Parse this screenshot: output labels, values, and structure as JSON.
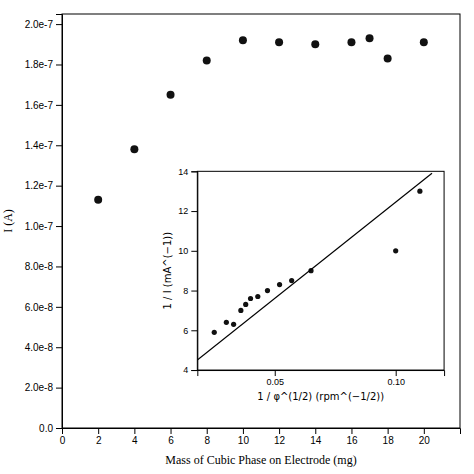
{
  "chart_data": [
    {
      "type": "scatter",
      "x": [
        2,
        4,
        6,
        8,
        10,
        12,
        14,
        16,
        17,
        18,
        20
      ],
      "values": [
        1.13e-07,
        1.38e-07,
        1.65e-07,
        1.82e-07,
        1.92e-07,
        1.91e-07,
        1.9e-07,
        1.91e-07,
        1.93e-07,
        1.83e-07,
        1.91e-07
      ],
      "color": "#111111",
      "xlim": [
        0,
        22
      ],
      "ylim": [
        0.0,
        2.05e-07
      ],
      "xticks": [
        0,
        2,
        4,
        6,
        8,
        10,
        12,
        14,
        16,
        18,
        20
      ],
      "yticks": [
        {
          "value": 0.0,
          "label": "0.0"
        },
        {
          "value": 2e-08,
          "label": "2.0e-8"
        },
        {
          "value": 4e-08,
          "label": "4.0e-8"
        },
        {
          "value": 6e-08,
          "label": "6.0e-8"
        },
        {
          "value": 8e-08,
          "label": "8.0e-8"
        },
        {
          "value": 1e-07,
          "label": "1.0e-7"
        },
        {
          "value": 1.2e-07,
          "label": "1.2e-7"
        },
        {
          "value": 1.4e-07,
          "label": "1.4e-7"
        },
        {
          "value": 1.6e-07,
          "label": "1.6e-7"
        },
        {
          "value": 1.8e-07,
          "label": "1.8e-7"
        },
        {
          "value": 2e-07,
          "label": "2.0e-7"
        }
      ],
      "xlabel": "Mass of Cubic Phase on Electrode (mg)",
      "ylabel": "I (A)"
    },
    {
      "type": "scatter",
      "series": [
        {
          "type": "scatter",
          "color": "#111111",
          "x": [
            0.025,
            0.03,
            0.033,
            0.036,
            0.038,
            0.04,
            0.043,
            0.047,
            0.052,
            0.057,
            0.065,
            0.1,
            0.11
          ],
          "values": [
            5.9,
            6.4,
            6.3,
            7.0,
            7.3,
            7.6,
            7.7,
            8.0,
            8.3,
            8.5,
            9.0,
            10.0,
            13.0
          ]
        },
        {
          "type": "line",
          "color": "#000000",
          "x": [
            0.018,
            0.115
          ],
          "values": [
            4.5,
            13.9
          ]
        }
      ],
      "xlim": [
        0.018,
        0.12
      ],
      "ylim": [
        4,
        14
      ],
      "xticks": [
        0.05,
        {
          "value": 0.1,
          "label": "0.10"
        }
      ],
      "yticks": [
        4,
        6,
        8,
        10,
        12,
        14
      ],
      "xlabel": "1 / φ^(1/2) (rpm^(−1/2))",
      "ylabel": "1 / I (mA^(−1))"
    }
  ]
}
